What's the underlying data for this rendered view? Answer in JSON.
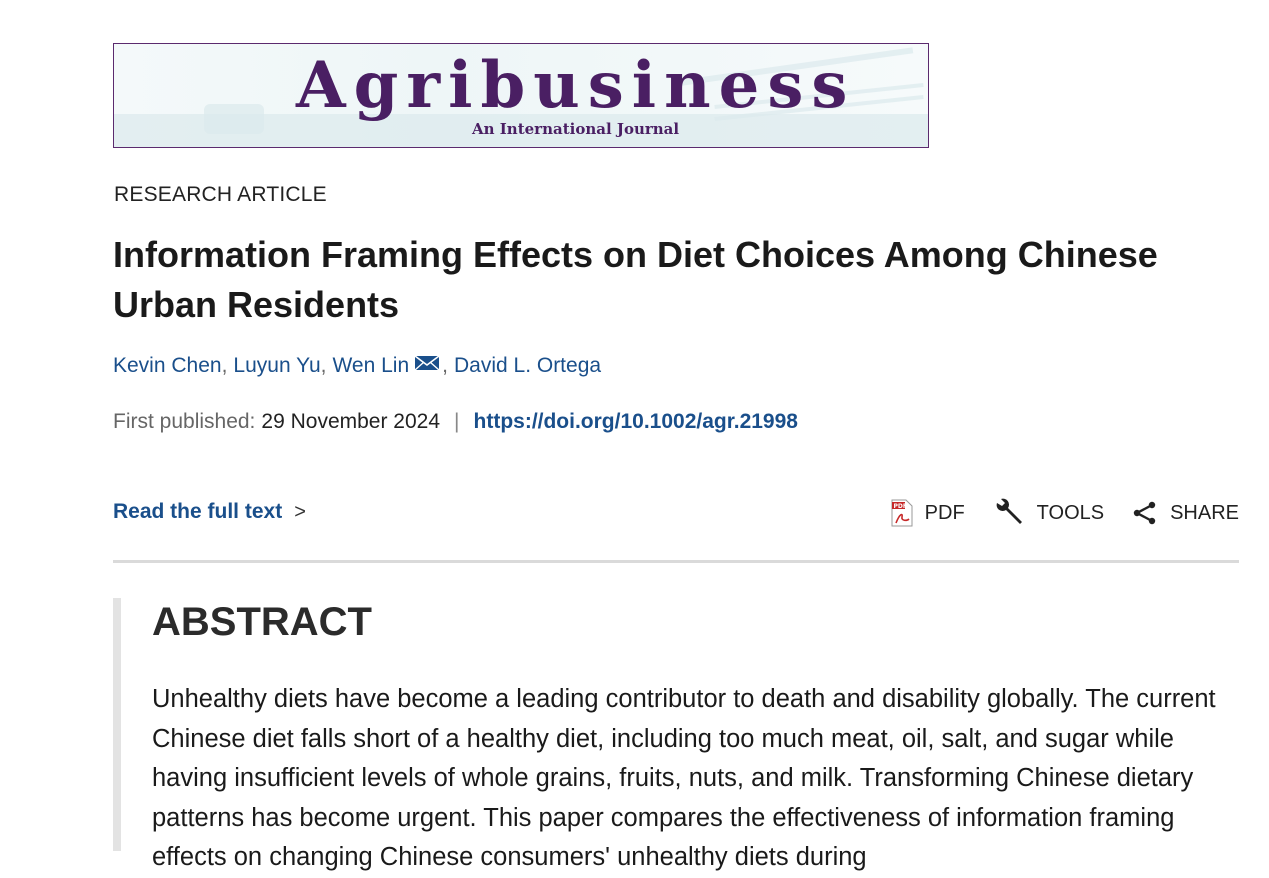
{
  "journal": {
    "title": "Agribusiness",
    "subtitle": "An International Journal"
  },
  "article": {
    "type": "RESEARCH ARTICLE",
    "title": "Information Framing Effects on Diet Choices Among Chinese Urban Residents",
    "authors": [
      {
        "name": "Kevin Chen",
        "sep": ","
      },
      {
        "name": "Luyun Yu",
        "sep": ","
      },
      {
        "name": "Wen Lin",
        "sep": ","
      },
      {
        "name": "David L. Ortega",
        "sep": ""
      }
    ],
    "published_label": "First published:",
    "published_date": "29 November 2024",
    "divider": "|",
    "doi": "https://doi.org/10.1002/agr.21998"
  },
  "actions": {
    "read_full_text": "Read the full text",
    "chevron": ">",
    "pdf": "PDF",
    "tools": "TOOLS",
    "share": "SHARE"
  },
  "abstract": {
    "heading": "ABSTRACT",
    "text": "Unhealthy diets have become a leading contributor to death and disability globally. The current Chinese diet falls short of a healthy diet, including too much meat, oil, salt, and sugar while having insufficient levels of whole grains, fruits, nuts, and milk. Transforming Chinese dietary patterns has become urgent. This paper compares the effectiveness of information framing effects on changing Chinese consumers' unhealthy diets during"
  },
  "colors": {
    "link": "#1a4f8b",
    "journal_purple": "#4a1f63",
    "pdf_red": "#c62828"
  },
  "icons": [
    "mail-icon",
    "pdf-icon",
    "wrench-icon",
    "share-icon",
    "chevron-right-icon"
  ]
}
